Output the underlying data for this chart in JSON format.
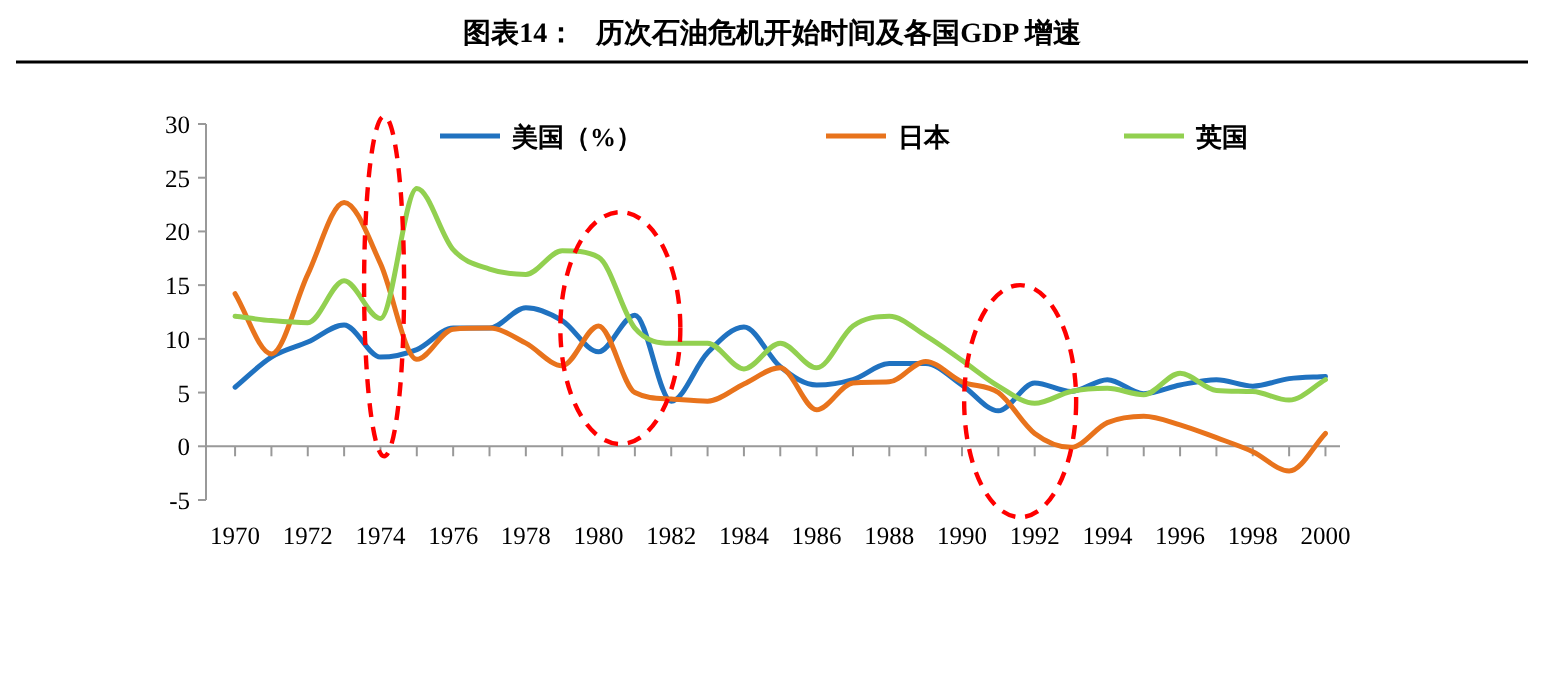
{
  "chart_data": {
    "type": "line",
    "title": "图表14：   历次石油危机开始时间及各国GDP 增速",
    "x": [
      1970,
      1971,
      1972,
      1973,
      1974,
      1975,
      1976,
      1977,
      1978,
      1979,
      1980,
      1981,
      1982,
      1983,
      1984,
      1985,
      1986,
      1987,
      1988,
      1989,
      1990,
      1991,
      1992,
      1993,
      1994,
      1995,
      1996,
      1997,
      1998,
      1999,
      2000
    ],
    "series": [
      {
        "name": "美国（%）",
        "color": "#2072c0",
        "values": [
          5.5,
          8.3,
          9.7,
          11.3,
          8.3,
          9.0,
          11.0,
          11.0,
          12.9,
          11.7,
          8.8,
          12.2,
          4.2,
          8.7,
          11.1,
          7.4,
          5.7,
          6.2,
          7.7,
          7.7,
          5.7,
          3.3,
          5.9,
          5.1,
          6.2,
          4.9,
          5.7,
          6.2,
          5.6,
          6.3,
          6.5
        ]
      },
      {
        "name": "日本",
        "color": "#e8731c",
        "values": [
          14.2,
          8.6,
          16.0,
          22.7,
          17.0,
          8.1,
          10.9,
          11.0,
          9.6,
          7.5,
          11.2,
          5.0,
          4.4,
          4.2,
          5.8,
          7.3,
          3.4,
          5.9,
          6.0,
          7.9,
          6.0,
          5.0,
          1.2,
          -0.1,
          2.2,
          2.8,
          2.0,
          0.8,
          -0.5,
          -2.3,
          1.2
        ]
      },
      {
        "name": "英国",
        "color": "#92d050",
        "values": [
          12.1,
          11.7,
          11.5,
          15.4,
          11.9,
          24.0,
          18.3,
          16.5,
          16.0,
          18.2,
          17.6,
          11.0,
          9.6,
          9.6,
          7.2,
          9.6,
          7.3,
          11.2,
          12.1,
          10.3,
          8.0,
          5.6,
          4.0,
          5.1,
          5.4,
          4.8,
          6.8,
          5.2,
          5.1,
          4.3,
          6.2
        ]
      }
    ],
    "xlim": [
      1969.2,
      2000.4
    ],
    "xticks": [
      1970,
      {
        "value": 1971,
        "label": null
      },
      1972,
      {
        "value": 1973,
        "label": null
      },
      1974,
      {
        "value": 1975,
        "label": null
      },
      1976,
      {
        "value": 1977,
        "label": null
      },
      1978,
      {
        "value": 1979,
        "label": null
      },
      1980,
      {
        "value": 1981,
        "label": null
      },
      1982,
      {
        "value": 1983,
        "label": null
      },
      1984,
      {
        "value": 1985,
        "label": null
      },
      1986,
      {
        "value": 1987,
        "label": null
      },
      1988,
      {
        "value": 1989,
        "label": null
      },
      1990,
      {
        "value": 1991,
        "label": null
      },
      1992,
      {
        "value": 1993,
        "label": null
      },
      1994,
      {
        "value": 1995,
        "label": null
      },
      1996,
      {
        "value": 1997,
        "label": null
      },
      1998,
      {
        "value": 1999,
        "label": null
      },
      2000
    ],
    "ylim": [
      -5,
      30
    ],
    "yticks": [
      -5,
      0,
      5,
      10,
      15,
      20,
      25,
      30
    ],
    "legend": "top",
    "marker": "none",
    "line_style": "solid"
  }
}
